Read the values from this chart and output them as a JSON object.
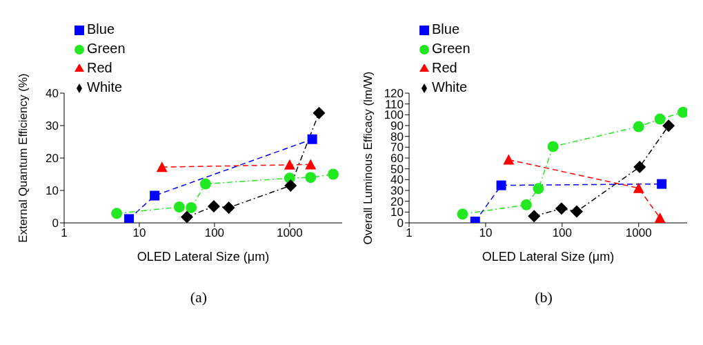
{
  "chart_data": [
    {
      "type": "line",
      "xlabel": "OLED Lateral Size (μm)",
      "ylabel": "External Quantum Efficiency (%)",
      "log": "x",
      "xlim": [
        1,
        5000
      ],
      "xticks": [
        1,
        10,
        100,
        1000
      ],
      "ylim": [
        0,
        40
      ],
      "yticks": [
        0,
        10,
        20,
        30,
        40
      ],
      "grid": false,
      "legend": "top left",
      "annotations": [
        "(a)"
      ],
      "series": [
        {
          "name": "Blue",
          "color": "#0000ff",
          "marker": "square",
          "line_style": "dashed",
          "x": [
            7.3,
            16,
            2000
          ],
          "values": [
            1.2,
            8.4,
            25.8
          ]
        },
        {
          "name": "Green",
          "color": "#22e822",
          "marker": "circle",
          "line_style": "dashdot",
          "x": [
            5,
            34,
            49,
            76,
            1000,
            1900,
            3800
          ],
          "values": [
            2.9,
            4.9,
            4.7,
            12,
            13.8,
            14,
            15
          ]
        },
        {
          "name": "Red",
          "color": "#ff0000",
          "marker": "triangle",
          "line_style": "dashed",
          "x": [
            20,
            1000,
            1900
          ],
          "values": [
            17.2,
            17.9,
            18
          ]
        },
        {
          "name": "White",
          "color": "#000000",
          "marker": "diamond",
          "line_style": "dashdot",
          "x": [
            43,
            98,
            155,
            1030,
            2460
          ],
          "values": [
            1.8,
            5.1,
            4.7,
            11.5,
            33.9
          ]
        }
      ]
    },
    {
      "type": "line",
      "xlabel": "OLED Lateral Size (μm)",
      "ylabel": "Overall Luminous Efficacy (lm/W)",
      "log": "x",
      "xlim": [
        1,
        4300
      ],
      "xticks": [
        1,
        10,
        100,
        1000
      ],
      "ylim": [
        0,
        120
      ],
      "yticks": [
        0,
        10,
        20,
        30,
        40,
        50,
        60,
        70,
        80,
        90,
        100,
        110,
        120
      ],
      "grid": false,
      "legend": "top left",
      "annotations": [
        "(b)"
      ],
      "series": [
        {
          "name": "Blue",
          "color": "#0000ff",
          "marker": "square",
          "line_style": "dashed",
          "x": [
            7.3,
            16,
            2000
          ],
          "values": [
            1.3,
            34.7,
            36
          ]
        },
        {
          "name": "Green",
          "color": "#22e822",
          "marker": "circle",
          "line_style": "dashdot",
          "x": [
            5,
            34,
            49,
            76,
            1000,
            1900,
            3800
          ],
          "values": [
            8.1,
            16.7,
            31.7,
            70.6,
            89,
            96,
            102.3
          ]
        },
        {
          "name": "Red",
          "color": "#ff0000",
          "marker": "triangle",
          "line_style": "dashed",
          "x": [
            20,
            1000,
            1900
          ],
          "values": [
            58.4,
            32.1,
            4.5
          ]
        },
        {
          "name": "White",
          "color": "#000000",
          "marker": "diamond",
          "line_style": "dashdot",
          "x": [
            43,
            98,
            155,
            1030,
            2460
          ],
          "values": [
            6.2,
            13.2,
            10.5,
            51.7,
            89.9
          ]
        }
      ]
    }
  ]
}
